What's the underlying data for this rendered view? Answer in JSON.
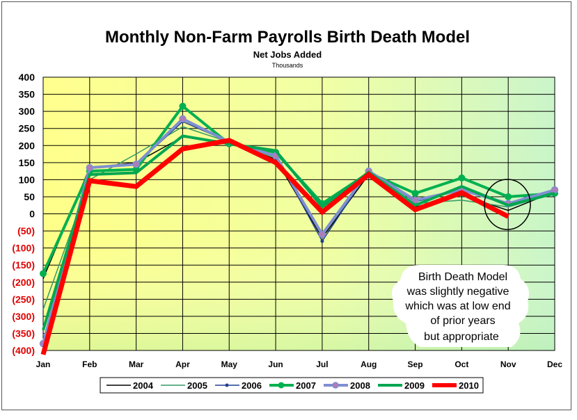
{
  "chart_data": {
    "type": "line",
    "title": "Monthly Non-Farm Payrolls Birth Death Model",
    "subtitle": "Net Jobs Added",
    "units_label": "Thousands",
    "xlabel": "",
    "ylabel": "",
    "categories": [
      "Jan",
      "Feb",
      "Mar",
      "Apr",
      "May",
      "Jun",
      "Jul",
      "Aug",
      "Sep",
      "Oct",
      "Nov",
      "Dec"
    ],
    "ylim": [
      -400,
      400
    ],
    "yticks": [
      400,
      350,
      300,
      250,
      200,
      150,
      100,
      50,
      0,
      -50,
      -100,
      -150,
      -200,
      -250,
      -300,
      -350,
      -400
    ],
    "ytick_labels": [
      "400",
      "350",
      "300",
      "250",
      "200",
      "150",
      "100",
      "50",
      "0",
      "(50)",
      "(100)",
      "(150)",
      "(200)",
      "(250)",
      "(300)",
      "(350)",
      "(400)"
    ],
    "negative_tick_color": "#e00000",
    "series": [
      {
        "name": "2004",
        "color": "#000000",
        "values": [
          -190,
          135,
          150,
          225,
          210,
          160,
          -70,
          115,
          20,
          55,
          10,
          65
        ]
      },
      {
        "name": "2005",
        "color": "#339966",
        "values": [
          -280,
          100,
          175,
          255,
          210,
          165,
          -65,
          120,
          30,
          40,
          20,
          60
        ]
      },
      {
        "name": "2006",
        "color": "#1f3f8f",
        "values": [
          -380,
          135,
          145,
          270,
          210,
          170,
          -80,
          125,
          35,
          70,
          30,
          70
        ]
      },
      {
        "name": "2007",
        "color": "#00b050",
        "values": [
          -175,
          125,
          130,
          315,
          205,
          180,
          30,
          120,
          60,
          105,
          50,
          60
        ]
      },
      {
        "name": "2008",
        "color": "#7f8fd0",
        "values": [
          -380,
          135,
          145,
          278,
          210,
          170,
          -60,
          125,
          40,
          70,
          30,
          70
        ]
      },
      {
        "name": "2009",
        "color": "#00a651",
        "values": [
          -340,
          115,
          120,
          228,
          205,
          185,
          20,
          122,
          25,
          80,
          25,
          60
        ]
      },
      {
        "name": "2010",
        "color": "#ff0000",
        "values": [
          -412,
          97,
          80,
          190,
          215,
          150,
          5,
          115,
          12,
          62,
          -8,
          null
        ]
      }
    ],
    "legend_position": "bottom",
    "annotation": {
      "lines": [
        "Birth Death Model",
        "was slightly negative",
        "which was at low end",
        "of prior years",
        "but appropriate"
      ]
    }
  }
}
